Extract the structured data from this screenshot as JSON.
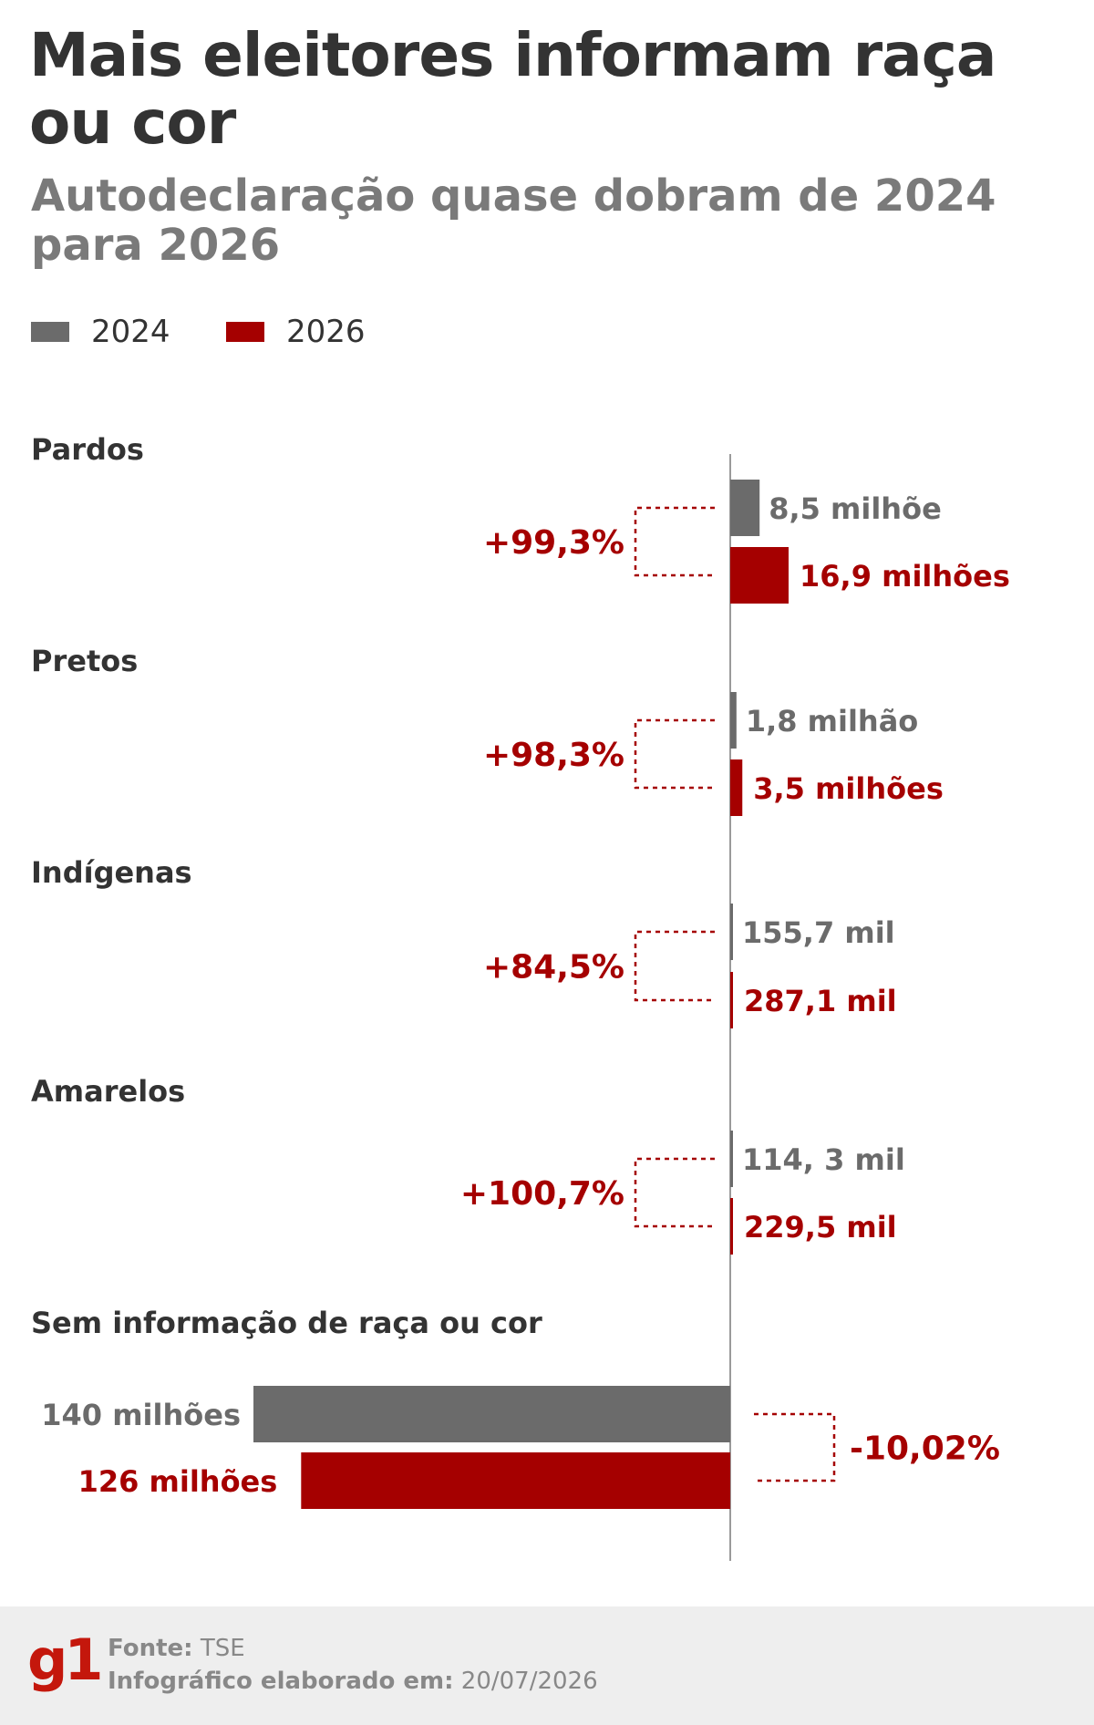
{
  "header": {
    "title": "Mais eleitores informam raça ou cor",
    "subtitle": "Autodeclaração quase dobram de 2024 para 2026"
  },
  "legend": {
    "items": [
      {
        "label": "2024",
        "color": "#6b6b6b"
      },
      {
        "label": "2026",
        "color": "#a50000"
      }
    ]
  },
  "chart_data": {
    "type": "bar",
    "orientation": "horizontal",
    "series_names": [
      "2024",
      "2026"
    ],
    "colors": {
      "2024": "#6b6b6b",
      "2026": "#a50000"
    },
    "categories": [
      {
        "name": "Pardos",
        "v2024": 8.5,
        "v2026": 16.9,
        "label2024": "8,5 milhõe",
        "label2026": "16,9 milhões",
        "change": "+99,3%"
      },
      {
        "name": "Pretos",
        "v2024": 1.8,
        "v2026": 3.5,
        "label2024": "1,8 milhão",
        "label2026": "3,5 milhões",
        "change": "+98,3%"
      },
      {
        "name": "Indígenas",
        "v2024": 0.1557,
        "v2026": 0.2871,
        "label2024": "155,7 mil",
        "label2026": "287,1 mil",
        "change": "+84,5%"
      },
      {
        "name": "Amarelos",
        "v2024": 0.1143,
        "v2026": 0.2295,
        "label2024": "114, 3 mil",
        "label2026": "229,5 mil",
        "change": "+100,7%"
      },
      {
        "name": "Sem informação de raça ou cor",
        "v2024": 140,
        "v2026": 126,
        "label2024": "140 milhões",
        "label2026": "126 milhões",
        "change": "-10,02%"
      }
    ],
    "unit": "milhões"
  },
  "footer": {
    "logo": "g1",
    "source_label": "Fonte:",
    "source_value": "TSE",
    "date_label": "Infográfico elaborado em:",
    "date_value": "20/07/2026"
  }
}
